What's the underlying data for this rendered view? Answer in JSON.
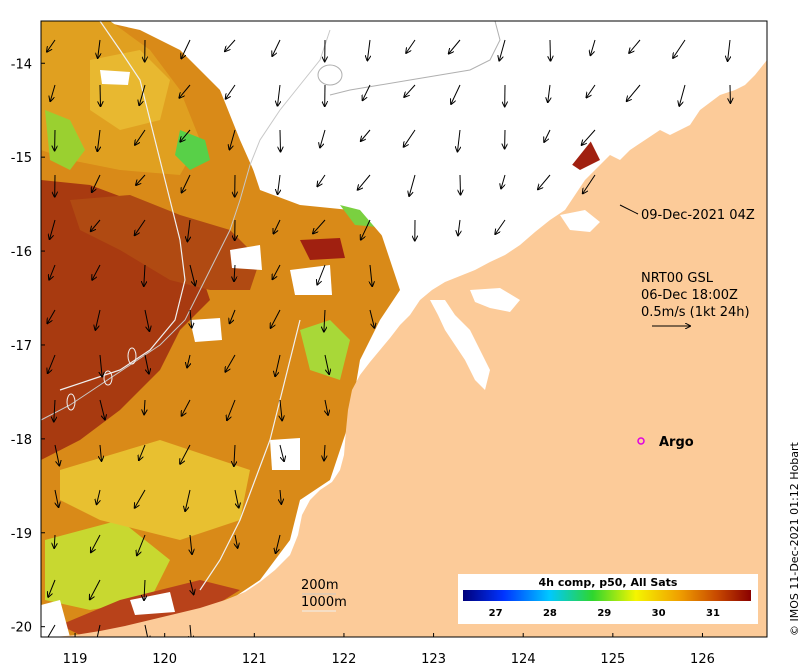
{
  "map": {
    "x_ticks": [
      {
        "lon": 119,
        "label": "119"
      },
      {
        "lon": 120,
        "label": "120"
      },
      {
        "lon": 121,
        "label": "121"
      },
      {
        "lon": 122,
        "label": "122"
      },
      {
        "lon": 123,
        "label": "123"
      },
      {
        "lon": 124,
        "label": "124"
      },
      {
        "lon": 125,
        "label": "125"
      },
      {
        "lon": 126,
        "label": "126"
      }
    ],
    "y_ticks": [
      {
        "lat": -14,
        "label": "-14"
      },
      {
        "lat": -15,
        "label": "-15"
      },
      {
        "lat": -16,
        "label": "-16"
      },
      {
        "lat": -17,
        "label": "-17"
      },
      {
        "lat": -18,
        "label": "-18"
      },
      {
        "lat": -19,
        "label": "-19"
      },
      {
        "lat": -20,
        "label": "-20"
      }
    ]
  },
  "annotations": {
    "date_label": "09-Dec-2021 04Z",
    "current_title": "NRT00 GSL",
    "current_time": "06-Dec 18:00Z",
    "current_scale": "0.5m/s (1kt 24h)",
    "argo_label": "Argo",
    "contour_200": "200m",
    "contour_1000": "1000m",
    "credit": "© IMOS 11-Dec-2021 01:12 Hobart"
  },
  "colorbar": {
    "title": "4h comp, p50, All Sats",
    "ticks": [
      "27",
      "28",
      "29",
      "30",
      "31"
    ],
    "stops": [
      "#00007a",
      "#0033ff",
      "#00c8ff",
      "#2ed62e",
      "#f5f500",
      "#f0a000",
      "#c84a00",
      "#8a0000"
    ]
  },
  "colors": {
    "land": "#fccb99",
    "argo": "#e000e0",
    "sst_hot": "#a83a10",
    "sst_warm": "#d07a10",
    "sst_mid": "#e8b020",
    "sst_cool": "#b8d020",
    "sst_green": "#58d048"
  }
}
